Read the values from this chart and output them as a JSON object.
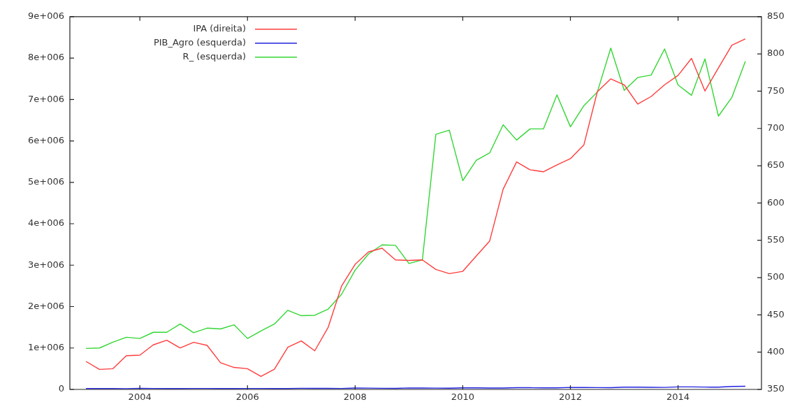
{
  "chart_data": {
    "type": "line",
    "x": [
      2003,
      2003.25,
      2003.5,
      2003.75,
      2004,
      2004.25,
      2004.5,
      2004.75,
      2005,
      2005.25,
      2005.5,
      2005.75,
      2006,
      2006.25,
      2006.5,
      2006.75,
      2007,
      2007.25,
      2007.5,
      2007.75,
      2008,
      2008.25,
      2008.5,
      2008.75,
      2009,
      2009.25,
      2009.5,
      2009.75,
      2010,
      2010.25,
      2010.5,
      2010.75,
      2011,
      2011.25,
      2011.5,
      2011.75,
      2012,
      2012.25,
      2012.5,
      2012.75,
      2013,
      2013.25,
      2013.5,
      2013.75,
      2014,
      2014.25,
      2014.5,
      2014.75,
      2015,
      2015.25
    ],
    "series": [
      {
        "name": "IPA (direita)",
        "color": "#ff3c3c",
        "axis": "y2",
        "values": [
          387.5,
          376.8,
          377.8,
          395.2,
          395.9,
          409.8,
          416,
          405.6,
          413.2,
          409.1,
          385.8,
          379.5,
          377.8,
          367.4,
          377.1,
          406.6,
          415,
          401.8,
          433.4,
          489,
          517.8,
          534.5,
          539.4,
          523.7,
          523,
          523.7,
          510.9,
          505.3,
          508.4,
          528.9,
          549.1,
          618.6,
          655.1,
          644.6,
          641.9,
          651.2,
          659.5,
          677.9,
          749.2,
          766.5,
          758.6,
          732.8,
          742.9,
          758.6,
          771.1,
          794,
          750.2,
          781.2,
          811.8,
          820.1
        ]
      },
      {
        "name": "PIB_Agro (esquerda)",
        "color": "#2020e0",
        "values": [
          20000,
          22000,
          21000,
          19000,
          25000,
          24000,
          22000,
          21000,
          24000,
          23000,
          22000,
          20000,
          24000,
          23000,
          22000,
          21000,
          27000,
          26000,
          25000,
          24000,
          33000,
          32000,
          28000,
          25000,
          36000,
          35000,
          32000,
          30000,
          38000,
          37000,
          35000,
          33000,
          42000,
          41000,
          39000,
          37000,
          48000,
          47000,
          45000,
          43000,
          55000,
          54000,
          51000,
          49000,
          62000,
          61000,
          57000,
          54000,
          72000,
          75000
        ]
      },
      {
        "name": "R_ (esquerda)",
        "color": "#33d633",
        "values": [
          990000,
          1000000,
          1140000,
          1260000,
          1230000,
          1380000,
          1380000,
          1580000,
          1370000,
          1480000,
          1460000,
          1560000,
          1230000,
          1410000,
          1580000,
          1910000,
          1780000,
          1790000,
          1940000,
          2300000,
          2880000,
          3270000,
          3490000,
          3480000,
          3040000,
          3130000,
          6160000,
          6260000,
          5040000,
          5530000,
          5710000,
          6390000,
          6020000,
          6290000,
          6290000,
          7110000,
          6340000,
          6850000,
          7180000,
          8240000,
          7220000,
          7530000,
          7590000,
          8220000,
          7350000,
          7100000,
          7980000,
          6600000,
          7050000,
          7920000
        ]
      }
    ],
    "xlim": [
      2002.7,
      2015.55
    ],
    "xticks": [
      2004,
      2006,
      2008,
      2010,
      2012,
      2014
    ],
    "ylim": [
      0,
      9000000
    ],
    "yticks": [
      0,
      {
        "value": 1000000,
        "label": "1e+006"
      },
      {
        "value": 2000000,
        "label": "2e+006"
      },
      {
        "value": 3000000,
        "label": "3e+006"
      },
      {
        "value": 4000000,
        "label": "4e+006"
      },
      {
        "value": 5000000,
        "label": "5e+006"
      },
      {
        "value": 6000000,
        "label": "6e+006"
      },
      {
        "value": 7000000,
        "label": "7e+006"
      },
      {
        "value": 8000000,
        "label": "8e+006"
      },
      {
        "value": 9000000,
        "label": "9e+006"
      }
    ],
    "y2lim": [
      350,
      850
    ],
    "y2ticks": [
      350,
      400,
      450,
      500,
      550,
      600,
      650,
      700,
      750,
      800,
      850
    ],
    "legend": "top left",
    "marker": "none",
    "line_style": "solid"
  }
}
